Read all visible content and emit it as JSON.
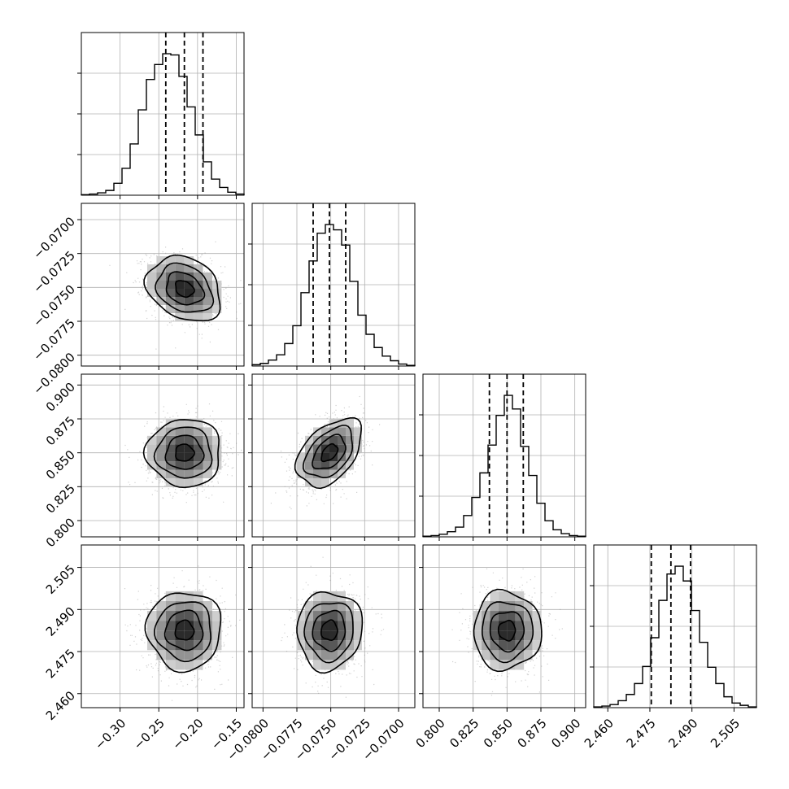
{
  "chart_data": {
    "type": "corner",
    "parameters": [
      {
        "index": 0,
        "range": [
          -0.35,
          -0.14
        ],
        "ticks": [
          -0.3,
          -0.25,
          -0.2,
          -0.15
        ],
        "tick_labels": [
          "−0.30",
          "−0.25",
          "−0.20",
          "−0.15"
        ],
        "quantiles": [
          -0.241,
          -0.217,
          -0.193
        ],
        "median": -0.217,
        "sigma": 0.024,
        "hist_counts": [
          1,
          2,
          4,
          8,
          20,
          45,
          86,
          143,
          194,
          219,
          237,
          235,
          199,
          148,
          101,
          56,
          27,
          13,
          5,
          2
        ]
      },
      {
        "index": 1,
        "range": [
          -0.0808,
          -0.0688
        ],
        "ticks": [
          -0.08,
          -0.0775,
          -0.075,
          -0.0725,
          -0.07
        ],
        "tick_labels": [
          "−0.0700",
          "−0.0725",
          "−0.0750",
          "−0.0775",
          "−0.0800"
        ],
        "x_tick_labels": [
          "−0.0800",
          "−0.0775",
          "−0.0750",
          "−0.0725",
          "−0.0700"
        ],
        "quantiles": [
          -0.0763,
          -0.0751,
          -0.0739
        ],
        "median": -0.0751,
        "sigma": 0.0012,
        "hist_counts": [
          2,
          4,
          9,
          17,
          34,
          61,
          111,
          159,
          201,
          214,
          206,
          183,
          128,
          77,
          48,
          28,
          15,
          8,
          3,
          1
        ]
      },
      {
        "index": 2,
        "range": [
          0.788,
          0.908
        ],
        "ticks": [
          0.8,
          0.825,
          0.85,
          0.875,
          0.9
        ],
        "tick_labels": [
          "0.900",
          "0.875",
          "0.850",
          "0.825",
          "0.800"
        ],
        "x_tick_labels": [
          "0.800",
          "0.825",
          "0.850",
          "0.875",
          "0.900"
        ],
        "quantiles": [
          0.837,
          0.85,
          0.862
        ],
        "median": 0.85,
        "sigma": 0.0125,
        "hist_counts": [
          1,
          2,
          4,
          8,
          15,
          33,
          61,
          99,
          142,
          188,
          219,
          198,
          140,
          95,
          52,
          25,
          11,
          5,
          2,
          1
        ]
      },
      {
        "index": 3,
        "range": [
          2.455,
          2.513
        ],
        "ticks": [
          2.46,
          2.475,
          2.49,
          2.505
        ],
        "tick_labels": [
          "2.505",
          "2.490",
          "2.475",
          "2.460"
        ],
        "x_tick_labels": [
          "2.460",
          "2.475",
          "2.490",
          "2.505"
        ],
        "quantiles": [
          2.4755,
          2.4825,
          2.4895
        ],
        "median": 2.4825,
        "sigma": 0.007,
        "hist_counts": [
          1,
          2,
          4,
          9,
          17,
          31,
          53,
          90,
          138,
          172,
          182,
          163,
          125,
          84,
          52,
          31,
          14,
          6,
          3,
          1
        ]
      }
    ],
    "correlations": [
      [
        1.0,
        -0.25,
        0.0,
        0.0
      ],
      [
        -0.25,
        1.0,
        0.45,
        0.05
      ],
      [
        0.0,
        0.45,
        1.0,
        0.0
      ],
      [
        0.0,
        0.05,
        0.0,
        1.0
      ]
    ],
    "contour_levels_sigma": [
      0.5,
      1.0,
      1.5,
      2.0
    ],
    "grid": true,
    "colors": {
      "line": "#000000",
      "grid": "#b0b0b0",
      "scatter": "#9a9a9a",
      "density_dark": "#1a1a1a"
    }
  }
}
